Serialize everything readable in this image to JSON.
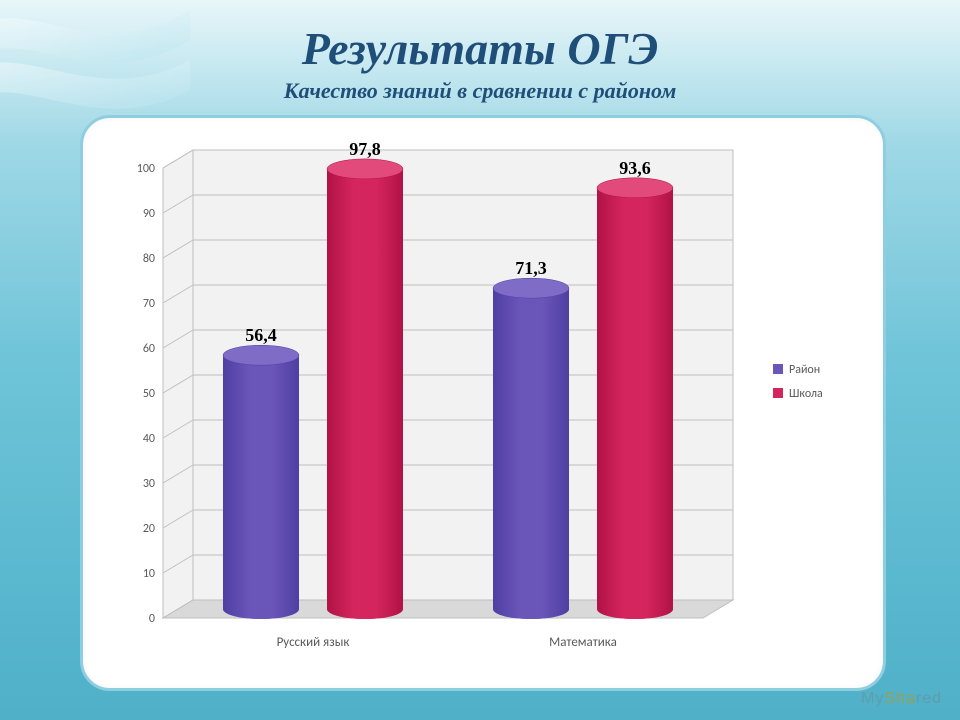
{
  "title": "Результаты ОГЭ",
  "subtitle": "Качество знаний в сравнении с районом",
  "watermark_prefix": "My",
  "watermark_hl": "Sha",
  "watermark_suffix": "red",
  "chart": {
    "type": "bar-3d-cylinder",
    "categories": [
      "Русский язык",
      "Математика"
    ],
    "series": [
      {
        "name": "Район",
        "color_top": "#7e6cc7",
        "color_side": "#4f3fa3",
        "color_face": "#6a55b8",
        "values": [
          56.4,
          71.3
        ],
        "labels": [
          "56,4",
          "71,3"
        ]
      },
      {
        "name": "Школа",
        "color_top": "#e14a7a",
        "color_side": "#b11245",
        "color_face": "#d5255e",
        "values": [
          97.8,
          93.6
        ],
        "labels": [
          "97,8",
          "93,6"
        ]
      }
    ],
    "legend": [
      {
        "label": "Район",
        "swatch": "#6a55b8"
      },
      {
        "label": "Школа",
        "swatch": "#d5255e"
      }
    ],
    "ylim": [
      0,
      100
    ],
    "ytick_step": 10,
    "yticks": [
      0,
      10,
      20,
      30,
      40,
      50,
      60,
      70,
      80,
      90,
      100
    ],
    "axis_font_family": "Calibri, Arial, sans-serif",
    "axis_font_size": 12,
    "axis_color": "#595959",
    "data_label_font_size": 18,
    "data_label_font_weight": "bold",
    "data_label_color": "#000000",
    "category_font_size": 13,
    "grid_color": "#bfbfbf",
    "wall_color": "#f2f2f2",
    "floor_color": "#d9d9d9",
    "background_color": "#ffffff",
    "frame_border_color": "#8fcde0",
    "frame_border_radius": 30
  }
}
